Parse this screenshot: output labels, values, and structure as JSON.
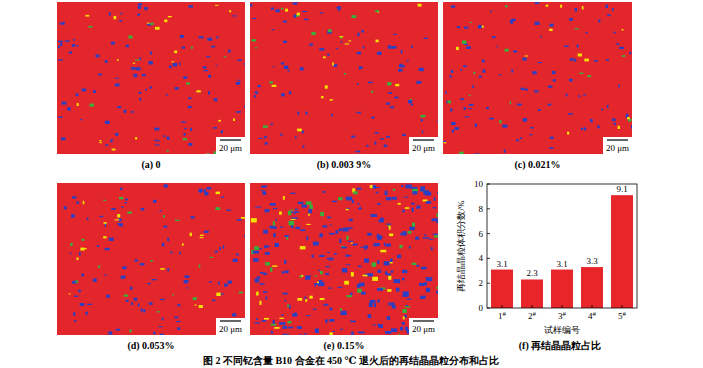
{
  "panels": [
    {
      "label": "(a) 0",
      "scale_bar": "20 μm"
    },
    {
      "label": "(b) 0.003 9%",
      "scale_bar": "20 μm"
    },
    {
      "label": "(c) 0.021%",
      "scale_bar": "20 μm"
    },
    {
      "label": "(d) 0.053%",
      "scale_bar": "20 μm"
    },
    {
      "label": "(e) 0.15%",
      "scale_bar": "20 μm"
    }
  ],
  "chart_data": {
    "type": "bar",
    "title": "(f) 再结晶晶粒占比",
    "x_label": "试样编号",
    "y_label": "再结晶晶粒体积分数/%",
    "categories": [
      "1#",
      "2#",
      "3#",
      "4#",
      "5#"
    ],
    "values": [
      3.1,
      2.3,
      3.1,
      3.3,
      9.1
    ],
    "color": "#e8262a",
    "ylim": [
      0,
      10
    ],
    "yticks": [
      0,
      2,
      4,
      6,
      8,
      10
    ],
    "data_labels": true
  },
  "caption": "图 2  不同钇含量 B10 合金在 450 ℃ 退火后的再结晶晶粒分布和占比"
}
